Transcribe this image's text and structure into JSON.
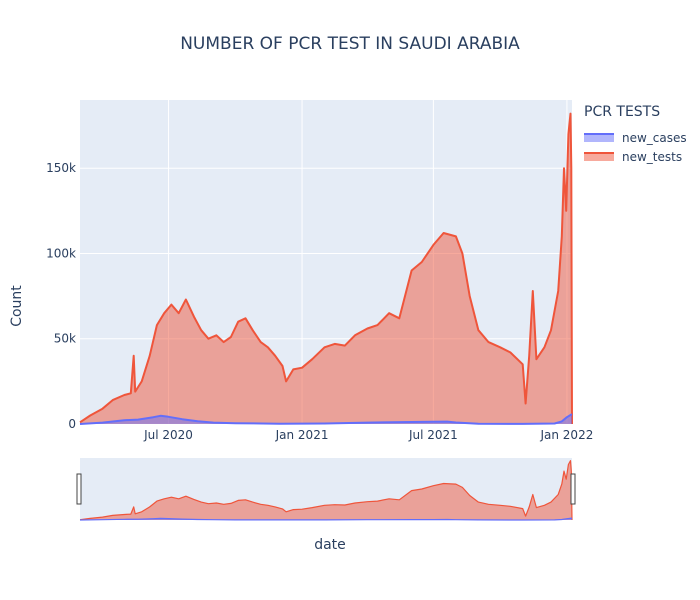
{
  "chart_data": {
    "type": "area",
    "title": "NUMBER OF PCR TEST IN SAUDI ARABIA",
    "xlabel": "date",
    "ylabel": "Count",
    "x_tick_labels": [
      "Jul 2020",
      "Jan 2021",
      "Jul 2021",
      "Jan 2022"
    ],
    "x_ticks": [
      "2020-07-01",
      "2021-01-01",
      "2021-07-01",
      "2022-01-01"
    ],
    "y_tick_labels": [
      "0",
      "50k",
      "100k",
      "150k"
    ],
    "y_ticks": [
      0,
      50000,
      100000,
      150000
    ],
    "xlim": [
      "2020-03-01",
      "2022-01-08"
    ],
    "ylim": [
      0,
      190000
    ],
    "grid": true,
    "legend_title": "PCR TESTS",
    "legend_position": "top-right",
    "range_slider": true,
    "series": [
      {
        "name": "new_cases",
        "color": "#636efa",
        "fill": "rgba(99,110,250,0.5)",
        "points": [
          [
            "2020-03-01",
            0
          ],
          [
            "2020-04-01",
            800
          ],
          [
            "2020-05-01",
            2200
          ],
          [
            "2020-05-20",
            2600
          ],
          [
            "2020-06-10",
            4000
          ],
          [
            "2020-06-20",
            4800
          ],
          [
            "2020-07-01",
            4200
          ],
          [
            "2020-07-20",
            2800
          ],
          [
            "2020-08-10",
            1600
          ],
          [
            "2020-09-01",
            800
          ],
          [
            "2020-10-01",
            450
          ],
          [
            "2020-12-01",
            200
          ],
          [
            "2021-02-01",
            300
          ],
          [
            "2021-04-01",
            800
          ],
          [
            "2021-06-01",
            1200
          ],
          [
            "2021-07-01",
            1300
          ],
          [
            "2021-07-20",
            1400
          ],
          [
            "2021-08-01",
            900
          ],
          [
            "2021-09-01",
            200
          ],
          [
            "2021-11-01",
            50
          ],
          [
            "2021-12-15",
            300
          ],
          [
            "2021-12-25",
            1500
          ],
          [
            "2022-01-01",
            4000
          ],
          [
            "2022-01-08",
            5800
          ]
        ]
      },
      {
        "name": "new_tests",
        "color": "#ef553b",
        "fill": "rgba(239,85,59,0.5)",
        "points": [
          [
            "2020-03-01",
            1000
          ],
          [
            "2020-03-15",
            5000
          ],
          [
            "2020-04-01",
            9000
          ],
          [
            "2020-04-15",
            14000
          ],
          [
            "2020-05-01",
            17000
          ],
          [
            "2020-05-10",
            18000
          ],
          [
            "2020-05-14",
            40000
          ],
          [
            "2020-05-16",
            19000
          ],
          [
            "2020-05-25",
            25000
          ],
          [
            "2020-06-05",
            40000
          ],
          [
            "2020-06-15",
            58000
          ],
          [
            "2020-06-25",
            65000
          ],
          [
            "2020-07-05",
            70000
          ],
          [
            "2020-07-15",
            65000
          ],
          [
            "2020-07-25",
            73000
          ],
          [
            "2020-08-05",
            63000
          ],
          [
            "2020-08-15",
            55000
          ],
          [
            "2020-08-25",
            50000
          ],
          [
            "2020-09-05",
            52000
          ],
          [
            "2020-09-15",
            48000
          ],
          [
            "2020-09-25",
            51000
          ],
          [
            "2020-10-05",
            60000
          ],
          [
            "2020-10-15",
            62000
          ],
          [
            "2020-10-25",
            55000
          ],
          [
            "2020-11-05",
            48000
          ],
          [
            "2020-11-15",
            45000
          ],
          [
            "2020-11-25",
            40000
          ],
          [
            "2020-12-05",
            34000
          ],
          [
            "2020-12-10",
            25000
          ],
          [
            "2020-12-20",
            32000
          ],
          [
            "2021-01-01",
            33000
          ],
          [
            "2021-01-15",
            38000
          ],
          [
            "2021-02-01",
            45000
          ],
          [
            "2021-02-15",
            47000
          ],
          [
            "2021-03-01",
            46000
          ],
          [
            "2021-03-15",
            52000
          ],
          [
            "2021-04-01",
            56000
          ],
          [
            "2021-04-15",
            58000
          ],
          [
            "2021-05-01",
            65000
          ],
          [
            "2021-05-15",
            62000
          ],
          [
            "2021-06-01",
            90000
          ],
          [
            "2021-06-15",
            95000
          ],
          [
            "2021-07-01",
            105000
          ],
          [
            "2021-07-15",
            112000
          ],
          [
            "2021-08-01",
            110000
          ],
          [
            "2021-08-10",
            100000
          ],
          [
            "2021-08-20",
            75000
          ],
          [
            "2021-09-01",
            55000
          ],
          [
            "2021-09-15",
            48000
          ],
          [
            "2021-10-01",
            45000
          ],
          [
            "2021-10-15",
            42000
          ],
          [
            "2021-11-01",
            35000
          ],
          [
            "2021-11-05",
            12000
          ],
          [
            "2021-11-10",
            40000
          ],
          [
            "2021-11-15",
            78000
          ],
          [
            "2021-11-20",
            38000
          ],
          [
            "2021-12-01",
            45000
          ],
          [
            "2021-12-10",
            55000
          ],
          [
            "2021-12-20",
            78000
          ],
          [
            "2021-12-25",
            110000
          ],
          [
            "2021-12-28",
            150000
          ],
          [
            "2021-12-31",
            125000
          ],
          [
            "2022-01-03",
            170000
          ],
          [
            "2022-01-06",
            182000
          ],
          [
            "2022-01-07",
            150000
          ],
          [
            "2022-01-08",
            0
          ]
        ]
      }
    ]
  }
}
